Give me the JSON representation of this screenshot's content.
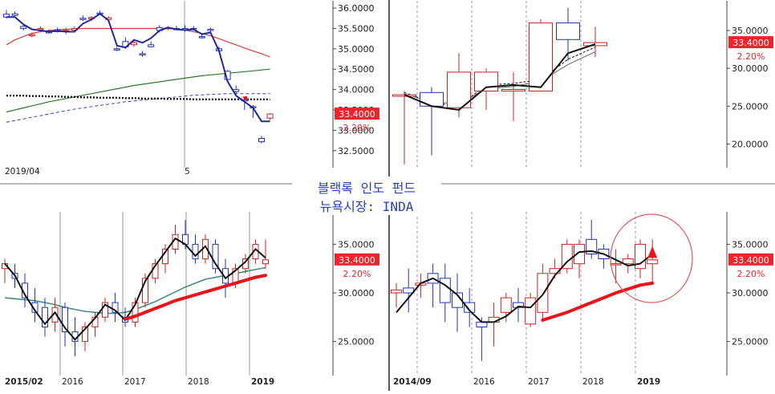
{
  "title_line1": "블랙록 인도 펀드",
  "title_line2": "뉴욕시장: INDA",
  "colors": {
    "up": "#cc2222",
    "down": "#2233bb",
    "price_line": "#111111",
    "badge_bg": "#e8262c",
    "change_text": "#e8262c",
    "title_text": "#2b3fc4",
    "grid": "#9a9a9a"
  },
  "chart_data": [
    {
      "id": "daily",
      "type": "candlestick",
      "price_label": "33.4000",
      "change_label": "2.20%",
      "y_ticks": [
        "36.0000",
        "35.5000",
        "35.0000",
        "34.5000",
        "34.0000",
        "33.5000",
        "33.0000",
        "32.5000"
      ],
      "ylim": [
        32.2,
        36.1
      ],
      "x_labels": [
        "2019/04",
        "5"
      ],
      "candles": [
        {
          "o": 35.85,
          "h": 35.95,
          "l": 35.75,
          "c": 35.78
        },
        {
          "o": 35.86,
          "h": 35.92,
          "l": 35.8,
          "c": 35.82
        },
        {
          "o": 35.55,
          "h": 35.62,
          "l": 35.45,
          "c": 35.5
        },
        {
          "o": 35.32,
          "h": 35.4,
          "l": 35.28,
          "c": 35.35
        },
        {
          "o": 35.47,
          "h": 35.55,
          "l": 35.44,
          "c": 35.5
        },
        {
          "o": 35.42,
          "h": 35.48,
          "l": 35.38,
          "c": 35.4
        },
        {
          "o": 35.47,
          "h": 35.52,
          "l": 35.4,
          "c": 35.42
        },
        {
          "o": 35.42,
          "h": 35.52,
          "l": 35.36,
          "c": 35.45
        },
        {
          "o": 35.46,
          "h": 35.55,
          "l": 35.4,
          "c": 35.5
        },
        {
          "o": 35.75,
          "h": 35.82,
          "l": 35.68,
          "c": 35.72
        },
        {
          "o": 35.74,
          "h": 35.8,
          "l": 35.68,
          "c": 35.77
        },
        {
          "o": 35.88,
          "h": 35.94,
          "l": 35.84,
          "c": 35.86
        },
        {
          "o": 35.72,
          "h": 35.8,
          "l": 35.66,
          "c": 35.76
        },
        {
          "o": 35.0,
          "h": 35.05,
          "l": 34.94,
          "c": 34.98
        },
        {
          "o": 35.18,
          "h": 35.28,
          "l": 35.0,
          "c": 35.05
        },
        {
          "o": 35.1,
          "h": 35.22,
          "l": 35.05,
          "c": 35.15
        },
        {
          "o": 34.88,
          "h": 34.95,
          "l": 34.8,
          "c": 34.85
        },
        {
          "o": 35.1,
          "h": 35.18,
          "l": 35.04,
          "c": 35.05
        },
        {
          "o": 35.52,
          "h": 35.58,
          "l": 35.4,
          "c": 35.45
        },
        {
          "o": 35.5,
          "h": 35.56,
          "l": 35.46,
          "c": 35.52
        },
        {
          "o": 35.5,
          "h": 35.56,
          "l": 35.45,
          "c": 35.48
        },
        {
          "o": 35.5,
          "h": 35.58,
          "l": 35.42,
          "c": 35.46
        },
        {
          "o": 35.5,
          "h": 35.56,
          "l": 35.45,
          "c": 35.48
        },
        {
          "o": 35.3,
          "h": 35.35,
          "l": 35.25,
          "c": 35.28
        },
        {
          "o": 35.48,
          "h": 35.52,
          "l": 35.42,
          "c": 35.45
        },
        {
          "o": 35.0,
          "h": 35.05,
          "l": 34.92,
          "c": 34.95
        },
        {
          "o": 34.45,
          "h": 34.48,
          "l": 34.2,
          "c": 34.25
        },
        {
          "o": 34.0,
          "h": 34.1,
          "l": 33.9,
          "c": 33.95
        },
        {
          "o": 33.75,
          "h": 33.8,
          "l": 33.5,
          "c": 33.72
        },
        {
          "o": 33.58,
          "h": 33.62,
          "l": 33.3,
          "c": 33.55
        },
        {
          "o": 32.8,
          "h": 32.86,
          "l": 32.68,
          "c": 32.72
        },
        {
          "o": 33.3,
          "h": 33.42,
          "l": 33.25,
          "c": 33.4
        }
      ],
      "close_line": [
        35.78,
        35.78,
        35.6,
        35.48,
        35.45,
        35.42,
        35.44,
        35.42,
        35.42,
        35.62,
        35.72,
        35.86,
        35.7,
        35.08,
        35.03,
        35.22,
        35.15,
        35.26,
        35.45,
        35.52,
        35.48,
        35.46,
        35.48,
        35.36,
        35.4,
        34.95,
        34.2,
        33.85,
        33.7,
        33.55,
        33.22,
        33.22
      ],
      "ma_red": [
        35.1,
        35.22,
        35.3,
        35.38,
        35.42,
        35.45,
        35.47,
        35.48,
        35.49,
        35.5,
        35.5,
        35.5,
        35.5,
        35.5,
        35.5,
        35.5,
        35.5,
        35.5,
        35.5,
        35.5,
        35.49,
        35.46,
        35.42,
        35.38,
        35.32,
        35.25,
        35.17,
        35.1,
        35.02,
        34.95,
        34.88,
        34.8
      ],
      "ma_green": [
        33.45,
        33.5,
        33.55,
        33.6,
        33.65,
        33.7,
        33.74,
        33.78,
        33.82,
        33.86,
        33.9,
        33.94,
        33.98,
        34.02,
        34.06,
        34.1,
        34.13,
        34.16,
        34.19,
        34.22,
        34.25,
        34.28,
        34.31,
        34.34,
        34.36,
        34.38,
        34.4,
        34.42,
        34.44,
        34.46,
        34.48,
        34.5
      ],
      "ma_blue_dashed": [
        33.2,
        33.24,
        33.28,
        33.32,
        33.36,
        33.4,
        33.44,
        33.48,
        33.52,
        33.55,
        33.58,
        33.61,
        33.64,
        33.67,
        33.7,
        33.72,
        33.74,
        33.76,
        33.78,
        33.8,
        33.82,
        33.84,
        33.86,
        33.87,
        33.88,
        33.89,
        33.9,
        33.9,
        33.9,
        33.9,
        33.9,
        33.9
      ],
      "ma_black_dotted": [
        33.85,
        33.85,
        33.85,
        33.84,
        33.84,
        33.83,
        33.83,
        33.82,
        33.82,
        33.81,
        33.81,
        33.8,
        33.8,
        33.8,
        33.79,
        33.79,
        33.78,
        33.78,
        33.78,
        33.77,
        33.77,
        33.77,
        33.76,
        33.76,
        33.76,
        33.76,
        33.76,
        33.76,
        33.76,
        33.76,
        33.76,
        33.76
      ]
    },
    {
      "id": "monthly",
      "type": "candlestick",
      "price_label": "33.4000",
      "change_label": "2.20%",
      "y_ticks": [
        "35.0000",
        "30.0000",
        "25.0000",
        "20.0000"
      ],
      "ylim": [
        17.5,
        38.5
      ],
      "candles": [
        {
          "o": 26.3,
          "h": 27.0,
          "l": 17.3,
          "c": 26.5
        },
        {
          "o": 26.8,
          "h": 27.5,
          "l": 18.5,
          "c": 25.0
        },
        {
          "o": 24.8,
          "h": 32.0,
          "l": 23.5,
          "c": 29.5
        },
        {
          "o": 27.0,
          "h": 30.0,
          "l": 24.5,
          "c": 29.5
        },
        {
          "o": 27.0,
          "h": 29.5,
          "l": 23.0,
          "c": 27.2
        },
        {
          "o": 27.0,
          "h": 36.5,
          "l": 27.0,
          "c": 36.0
        },
        {
          "o": 36.0,
          "h": 38.0,
          "l": 31.0,
          "c": 33.8
        },
        {
          "o": 33.0,
          "h": 35.5,
          "l": 31.5,
          "c": 33.4
        }
      ],
      "close_line": [
        26.5,
        25.0,
        24.5,
        27.5,
        27.8,
        27.5,
        32.0,
        33.2
      ],
      "ma_dashed": [
        26.8,
        25.5,
        25.0,
        27.8,
        28.0,
        28.5,
        31.2,
        32.8
      ],
      "ma_gray": [
        26.6,
        25.6,
        25.3,
        27.3,
        27.6,
        28.3,
        30.5,
        32.2
      ]
    },
    {
      "id": "weekly",
      "type": "candlestick",
      "price_label": "33.4000",
      "change_label": "2.20%",
      "y_ticks": [
        "35.0000",
        "30.0000",
        "25.0000"
      ],
      "ylim": [
        22.0,
        38.0
      ],
      "x_labels": [
        "2015/02",
        "2016",
        "2017",
        "2018",
        "2019"
      ],
      "candles": [
        {
          "o": 32.5,
          "h": 33.5,
          "l": 31.0,
          "c": 33.0
        },
        {
          "o": 32.0,
          "h": 33.0,
          "l": 30.5,
          "c": 31.5
        },
        {
          "o": 31.0,
          "h": 32.0,
          "l": 28.5,
          "c": 29.5
        },
        {
          "o": 29.0,
          "h": 30.5,
          "l": 27.0,
          "c": 28.0
        },
        {
          "o": 28.5,
          "h": 29.5,
          "l": 25.5,
          "c": 26.5
        },
        {
          "o": 27.0,
          "h": 29.5,
          "l": 26.0,
          "c": 28.5
        },
        {
          "o": 28.5,
          "h": 29.0,
          "l": 24.5,
          "c": 26.0
        },
        {
          "o": 26.0,
          "h": 27.5,
          "l": 23.5,
          "c": 25.0
        },
        {
          "o": 25.0,
          "h": 27.0,
          "l": 24.0,
          "c": 26.5
        },
        {
          "o": 26.5,
          "h": 28.0,
          "l": 25.5,
          "c": 27.5
        },
        {
          "o": 27.5,
          "h": 29.5,
          "l": 27.0,
          "c": 29.0
        },
        {
          "o": 29.0,
          "h": 30.0,
          "l": 27.0,
          "c": 28.0
        },
        {
          "o": 27.5,
          "h": 28.5,
          "l": 26.5,
          "c": 27.0
        },
        {
          "o": 27.0,
          "h": 29.5,
          "l": 26.5,
          "c": 29.0
        },
        {
          "o": 29.0,
          "h": 32.0,
          "l": 28.5,
          "c": 31.5
        },
        {
          "o": 31.5,
          "h": 33.5,
          "l": 31.0,
          "c": 33.0
        },
        {
          "o": 33.0,
          "h": 35.0,
          "l": 32.0,
          "c": 34.5
        },
        {
          "o": 34.5,
          "h": 37.0,
          "l": 34.0,
          "c": 36.0
        },
        {
          "o": 36.0,
          "h": 37.5,
          "l": 34.5,
          "c": 35.0
        },
        {
          "o": 35.0,
          "h": 36.0,
          "l": 33.0,
          "c": 33.5
        },
        {
          "o": 33.5,
          "h": 36.0,
          "l": 33.0,
          "c": 35.5
        },
        {
          "o": 35.0,
          "h": 35.5,
          "l": 32.0,
          "c": 32.5
        },
        {
          "o": 32.5,
          "h": 33.5,
          "l": 29.5,
          "c": 31.0
        },
        {
          "o": 31.0,
          "h": 33.0,
          "l": 30.5,
          "c": 32.5
        },
        {
          "o": 32.5,
          "h": 34.0,
          "l": 32.0,
          "c": 33.5
        },
        {
          "o": 33.5,
          "h": 35.5,
          "l": 33.0,
          "c": 35.0
        },
        {
          "o": 33.0,
          "h": 35.5,
          "l": 32.5,
          "c": 33.4
        }
      ],
      "close_line": [
        33.0,
        31.8,
        29.8,
        28.2,
        26.8,
        28.0,
        26.4,
        25.2,
        26.3,
        27.4,
        28.8,
        28.2,
        27.2,
        28.8,
        31.2,
        32.8,
        34.2,
        35.6,
        35.0,
        33.8,
        34.8,
        33.0,
        31.5,
        32.3,
        33.2,
        34.5,
        33.6
      ],
      "ma_green": [
        29.5,
        29.4,
        29.3,
        29.2,
        29.0,
        28.8,
        28.5,
        28.3,
        28.1,
        28.0,
        27.9,
        27.9,
        28.0,
        28.3,
        28.7,
        29.1,
        29.6,
        30.1,
        30.6,
        31.0,
        31.4,
        31.6,
        31.8,
        32.0,
        32.2,
        32.4,
        32.6
      ],
      "ma_red_x_start": 12,
      "ma_red": [
        27.3,
        27.6,
        28.0,
        28.4,
        28.8,
        29.2,
        29.5,
        29.8,
        30.1,
        30.4,
        30.7,
        31.0,
        31.3,
        31.6,
        31.8
      ]
    },
    {
      "id": "quarterly",
      "type": "candlestick",
      "price_label": "33.4000",
      "change_label": "2.20%",
      "y_ticks": [
        "35.0000",
        "30.0000",
        "25.0000"
      ],
      "ylim": [
        22.0,
        38.0
      ],
      "x_labels": [
        "2014/09",
        "2016",
        "2017",
        "2018",
        "2019"
      ],
      "candles": [
        {
          "o": 30.0,
          "h": 31.0,
          "l": 28.5,
          "c": 30.3
        },
        {
          "o": 30.5,
          "h": 32.5,
          "l": 28.0,
          "c": 30.0
        },
        {
          "o": 30.8,
          "h": 32.0,
          "l": 29.5,
          "c": 31.0
        },
        {
          "o": 32.0,
          "h": 33.0,
          "l": 28.5,
          "c": 31.0
        },
        {
          "o": 31.5,
          "h": 33.0,
          "l": 27.0,
          "c": 29.0
        },
        {
          "o": 30.0,
          "h": 32.0,
          "l": 26.0,
          "c": 28.5
        },
        {
          "o": 29.0,
          "h": 30.5,
          "l": 26.5,
          "c": 28.0
        },
        {
          "o": 27.0,
          "h": 27.5,
          "l": 23.0,
          "c": 26.5
        },
        {
          "o": 27.0,
          "h": 29.0,
          "l": 24.5,
          "c": 27.5
        },
        {
          "o": 28.0,
          "h": 30.0,
          "l": 27.0,
          "c": 29.5
        },
        {
          "o": 29.0,
          "h": 30.5,
          "l": 27.0,
          "c": 28.5
        },
        {
          "o": 26.8,
          "h": 30.0,
          "l": 26.5,
          "c": 29.5
        },
        {
          "o": 28.0,
          "h": 33.0,
          "l": 27.0,
          "c": 32.0
        },
        {
          "o": 32.0,
          "h": 33.5,
          "l": 31.5,
          "c": 32.5
        },
        {
          "o": 32.5,
          "h": 35.5,
          "l": 32.0,
          "c": 35.0
        },
        {
          "o": 33.0,
          "h": 35.5,
          "l": 31.5,
          "c": 35.0
        },
        {
          "o": 35.5,
          "h": 37.5,
          "l": 33.5,
          "c": 34.0
        },
        {
          "o": 34.5,
          "h": 35.0,
          "l": 32.5,
          "c": 33.5
        },
        {
          "o": 33.0,
          "h": 34.5,
          "l": 31.0,
          "c": 33.0
        },
        {
          "o": 33.0,
          "h": 34.0,
          "l": 32.0,
          "c": 33.5
        },
        {
          "o": 32.5,
          "h": 35.5,
          "l": 31.5,
          "c": 35.0
        },
        {
          "o": 33.0,
          "h": 35.5,
          "l": 31.0,
          "c": 33.4
        }
      ],
      "close_line": [
        28.0,
        29.5,
        31.0,
        31.5,
        30.8,
        29.8,
        28.2,
        27.0,
        27.0,
        27.6,
        28.6,
        28.5,
        29.8,
        31.8,
        33.2,
        34.2,
        34.3,
        34.0,
        33.4,
        32.8,
        33.0,
        34.0
      ],
      "ma_red_x_start": 12,
      "ma_red": [
        27.2,
        27.6,
        28.0,
        28.5,
        29.0,
        29.5,
        30.0,
        30.4,
        30.8,
        31.0
      ]
    }
  ]
}
